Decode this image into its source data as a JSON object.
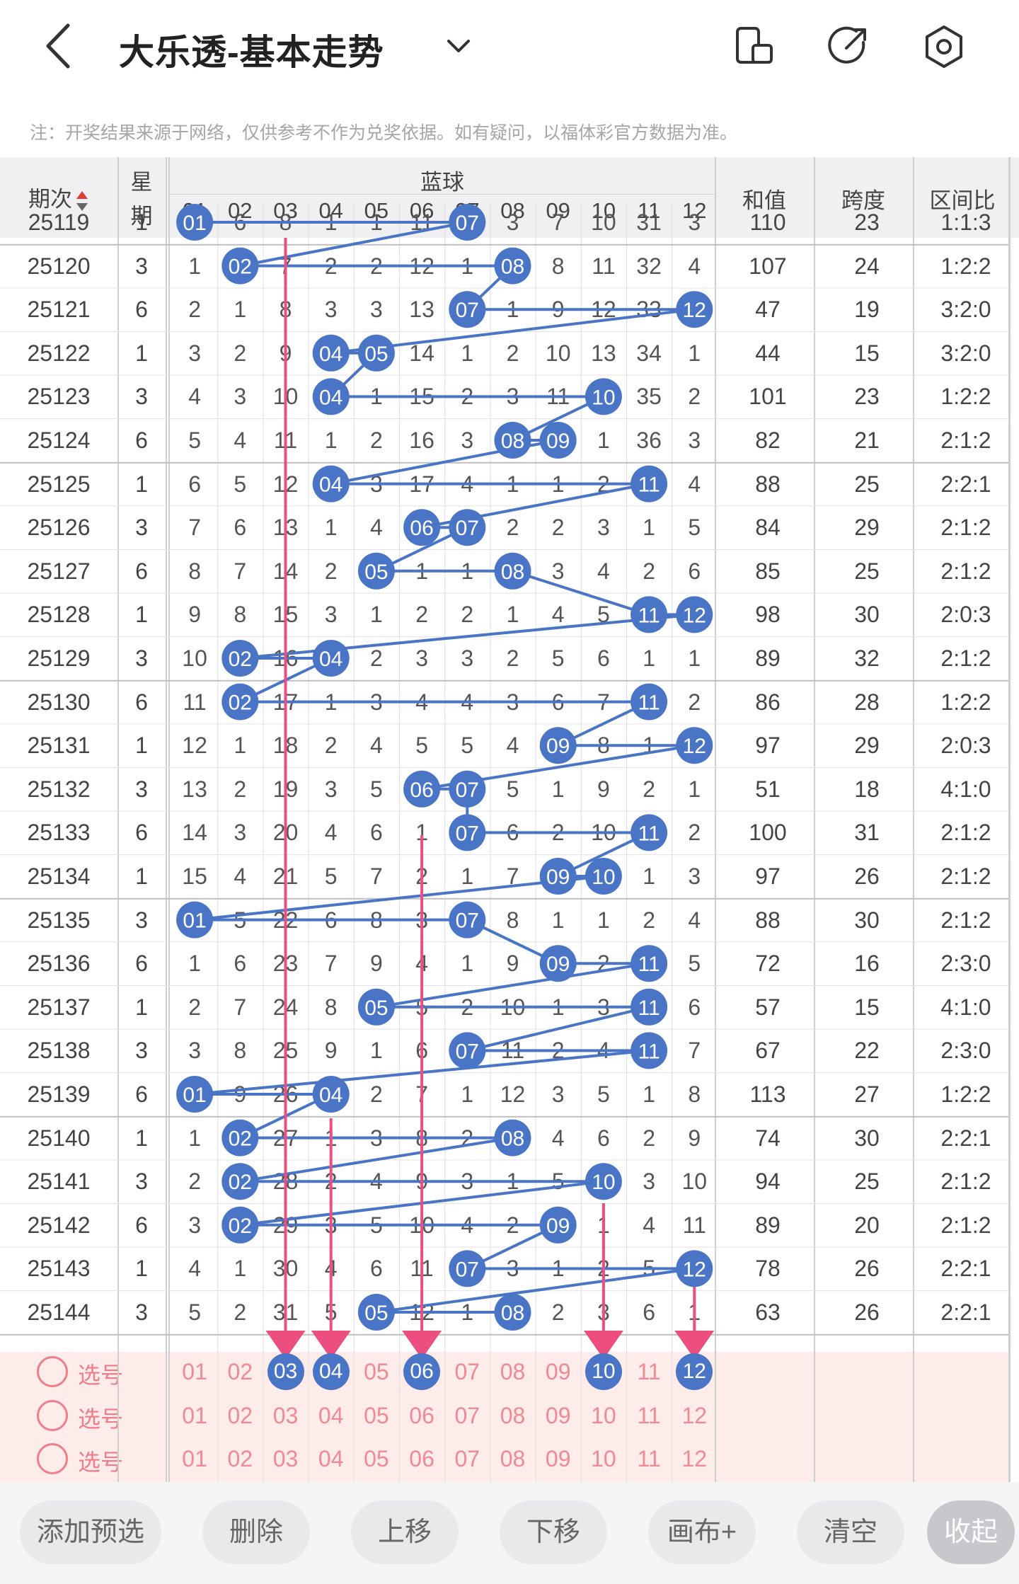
{
  "header": {
    "title": "大乐透-基本走势",
    "note": "注：开奖结果来源于网络，仅供参考不作为兑奖依据。如有疑问，以福体彩官方数据为准。"
  },
  "table": {
    "col_issue": "期次",
    "col_week": "星期",
    "col_blue": "蓝球",
    "col_sum": "和值",
    "col_span": "跨度",
    "col_ratio": "区间比",
    "blue_numbers": [
      "01",
      "02",
      "03",
      "04",
      "05",
      "06",
      "07",
      "08",
      "09",
      "10",
      "11",
      "12"
    ],
    "rows": [
      {
        "issue": "25119",
        "week": "1",
        "cells": [
          "01",
          "6",
          "8",
          "1",
          "1",
          "11",
          "07",
          "3",
          "7",
          "10",
          "31",
          "3"
        ],
        "balls": [
          1,
          7
        ],
        "sum": "110",
        "span": "23",
        "ratio": "1:1:3"
      },
      {
        "issue": "25120",
        "week": "3",
        "cells": [
          "1",
          "02",
          "7",
          "2",
          "2",
          "12",
          "1",
          "08",
          "8",
          "11",
          "32",
          "4"
        ],
        "balls": [
          2,
          8
        ],
        "sum": "107",
        "span": "24",
        "ratio": "1:2:2"
      },
      {
        "issue": "25121",
        "week": "6",
        "cells": [
          "2",
          "1",
          "8",
          "3",
          "3",
          "13",
          "07",
          "1",
          "9",
          "12",
          "33",
          "12"
        ],
        "balls": [
          7,
          12
        ],
        "sum": "47",
        "span": "19",
        "ratio": "3:2:0"
      },
      {
        "issue": "25122",
        "week": "1",
        "cells": [
          "3",
          "2",
          "9",
          "04",
          "05",
          "14",
          "1",
          "2",
          "10",
          "13",
          "34",
          "1"
        ],
        "balls": [
          4,
          5
        ],
        "sum": "44",
        "span": "15",
        "ratio": "3:2:0"
      },
      {
        "issue": "25123",
        "week": "3",
        "cells": [
          "4",
          "3",
          "10",
          "04",
          "1",
          "15",
          "2",
          "3",
          "11",
          "10",
          "35",
          "2"
        ],
        "balls": [
          4,
          10
        ],
        "sum": "101",
        "span": "23",
        "ratio": "1:2:2"
      },
      {
        "issue": "25124",
        "week": "6",
        "cells": [
          "5",
          "4",
          "11",
          "1",
          "2",
          "16",
          "3",
          "08",
          "09",
          "1",
          "36",
          "3"
        ],
        "balls": [
          8,
          9
        ],
        "sum": "82",
        "span": "21",
        "ratio": "2:1:2"
      },
      {
        "issue": "25125",
        "week": "1",
        "cells": [
          "6",
          "5",
          "12",
          "04",
          "3",
          "17",
          "4",
          "1",
          "1",
          "2",
          "11",
          "4"
        ],
        "balls": [
          4,
          11
        ],
        "sum": "88",
        "span": "25",
        "ratio": "2:2:1"
      },
      {
        "issue": "25126",
        "week": "3",
        "cells": [
          "7",
          "6",
          "13",
          "1",
          "4",
          "06",
          "07",
          "2",
          "2",
          "3",
          "1",
          "5"
        ],
        "balls": [
          6,
          7
        ],
        "sum": "84",
        "span": "29",
        "ratio": "2:1:2"
      },
      {
        "issue": "25127",
        "week": "6",
        "cells": [
          "8",
          "7",
          "14",
          "2",
          "05",
          "1",
          "1",
          "08",
          "3",
          "4",
          "2",
          "6"
        ],
        "balls": [
          5,
          8
        ],
        "sum": "85",
        "span": "25",
        "ratio": "2:1:2"
      },
      {
        "issue": "25128",
        "week": "1",
        "cells": [
          "9",
          "8",
          "15",
          "3",
          "1",
          "2",
          "2",
          "1",
          "4",
          "5",
          "11",
          "12"
        ],
        "balls": [
          11,
          12
        ],
        "sum": "98",
        "span": "30",
        "ratio": "2:0:3"
      },
      {
        "issue": "25129",
        "week": "3",
        "cells": [
          "10",
          "02",
          "16",
          "04",
          "2",
          "3",
          "3",
          "2",
          "5",
          "6",
          "1",
          "1"
        ],
        "balls": [
          2,
          4
        ],
        "sum": "89",
        "span": "32",
        "ratio": "2:1:2"
      },
      {
        "issue": "25130",
        "week": "6",
        "cells": [
          "11",
          "02",
          "17",
          "1",
          "3",
          "4",
          "4",
          "3",
          "6",
          "7",
          "11",
          "2"
        ],
        "balls": [
          2,
          11
        ],
        "sum": "86",
        "span": "28",
        "ratio": "1:2:2"
      },
      {
        "issue": "25131",
        "week": "1",
        "cells": [
          "12",
          "1",
          "18",
          "2",
          "4",
          "5",
          "5",
          "4",
          "09",
          "8",
          "1",
          "12"
        ],
        "balls": [
          9,
          12
        ],
        "sum": "97",
        "span": "29",
        "ratio": "2:0:3"
      },
      {
        "issue": "25132",
        "week": "3",
        "cells": [
          "13",
          "2",
          "19",
          "3",
          "5",
          "06",
          "07",
          "5",
          "1",
          "9",
          "2",
          "1"
        ],
        "balls": [
          6,
          7
        ],
        "sum": "51",
        "span": "18",
        "ratio": "4:1:0"
      },
      {
        "issue": "25133",
        "week": "6",
        "cells": [
          "14",
          "3",
          "20",
          "4",
          "6",
          "1",
          "07",
          "6",
          "2",
          "10",
          "11",
          "2"
        ],
        "balls": [
          7,
          11
        ],
        "sum": "100",
        "span": "31",
        "ratio": "2:1:2"
      },
      {
        "issue": "25134",
        "week": "1",
        "cells": [
          "15",
          "4",
          "21",
          "5",
          "7",
          "2",
          "1",
          "7",
          "09",
          "10",
          "1",
          "3"
        ],
        "balls": [
          9,
          10
        ],
        "sum": "97",
        "span": "26",
        "ratio": "2:1:2"
      },
      {
        "issue": "25135",
        "week": "3",
        "cells": [
          "01",
          "5",
          "22",
          "6",
          "8",
          "3",
          "07",
          "8",
          "1",
          "1",
          "2",
          "4"
        ],
        "balls": [
          1,
          7
        ],
        "sum": "88",
        "span": "30",
        "ratio": "2:1:2"
      },
      {
        "issue": "25136",
        "week": "6",
        "cells": [
          "1",
          "6",
          "23",
          "7",
          "9",
          "4",
          "1",
          "9",
          "09",
          "2",
          "11",
          "5"
        ],
        "balls": [
          9,
          11
        ],
        "sum": "72",
        "span": "16",
        "ratio": "2:3:0"
      },
      {
        "issue": "25137",
        "week": "1",
        "cells": [
          "2",
          "7",
          "24",
          "8",
          "05",
          "5",
          "2",
          "10",
          "1",
          "3",
          "11",
          "6"
        ],
        "balls": [
          5,
          11
        ],
        "sum": "57",
        "span": "15",
        "ratio": "4:1:0"
      },
      {
        "issue": "25138",
        "week": "3",
        "cells": [
          "3",
          "8",
          "25",
          "9",
          "1",
          "6",
          "07",
          "11",
          "2",
          "4",
          "11",
          "7"
        ],
        "balls": [
          7,
          11
        ],
        "sum": "67",
        "span": "22",
        "ratio": "2:3:0"
      },
      {
        "issue": "25139",
        "week": "6",
        "cells": [
          "01",
          "9",
          "26",
          "04",
          "2",
          "7",
          "1",
          "12",
          "3",
          "5",
          "1",
          "8"
        ],
        "balls": [
          1,
          4
        ],
        "sum": "113",
        "span": "27",
        "ratio": "1:2:2"
      },
      {
        "issue": "25140",
        "week": "1",
        "cells": [
          "1",
          "02",
          "27",
          "1",
          "3",
          "8",
          "2",
          "08",
          "4",
          "6",
          "2",
          "9"
        ],
        "balls": [
          2,
          8
        ],
        "sum": "74",
        "span": "30",
        "ratio": "2:2:1"
      },
      {
        "issue": "25141",
        "week": "3",
        "cells": [
          "2",
          "02",
          "28",
          "2",
          "4",
          "9",
          "3",
          "1",
          "5",
          "10",
          "3",
          "10"
        ],
        "balls": [
          2,
          10
        ],
        "sum": "94",
        "span": "25",
        "ratio": "2:1:2"
      },
      {
        "issue": "25142",
        "week": "6",
        "cells": [
          "3",
          "02",
          "29",
          "3",
          "5",
          "10",
          "4",
          "2",
          "09",
          "1",
          "4",
          "11"
        ],
        "balls": [
          2,
          9
        ],
        "sum": "89",
        "span": "20",
        "ratio": "2:1:2"
      },
      {
        "issue": "25143",
        "week": "1",
        "cells": [
          "4",
          "1",
          "30",
          "4",
          "6",
          "11",
          "07",
          "3",
          "1",
          "2",
          "5",
          "12"
        ],
        "balls": [
          7,
          12
        ],
        "sum": "78",
        "span": "26",
        "ratio": "2:2:1"
      },
      {
        "issue": "25144",
        "week": "3",
        "cells": [
          "5",
          "2",
          "31",
          "5",
          "05",
          "12",
          "1",
          "08",
          "2",
          "3",
          "6",
          "1"
        ],
        "balls": [
          5,
          8
        ],
        "sum": "63",
        "span": "26",
        "ratio": "2:2:1"
      }
    ]
  },
  "picks": {
    "select_label": "选号",
    "rows": [
      {
        "selected": [
          3,
          4,
          6,
          10,
          12
        ]
      },
      {
        "selected": []
      },
      {
        "selected": []
      }
    ]
  },
  "toolbar": {
    "add": "添加预选",
    "delete": "删除",
    "up": "上移",
    "down": "下移",
    "canvas": "画布+",
    "clear": "清空",
    "collapse": "收起"
  },
  "colors": {
    "ball": "#4a75c6",
    "line": "#4a75c6",
    "arrow": "#ec4f7f",
    "pink_bg": "#fdecea",
    "pink_text": "#ef7d8a"
  }
}
